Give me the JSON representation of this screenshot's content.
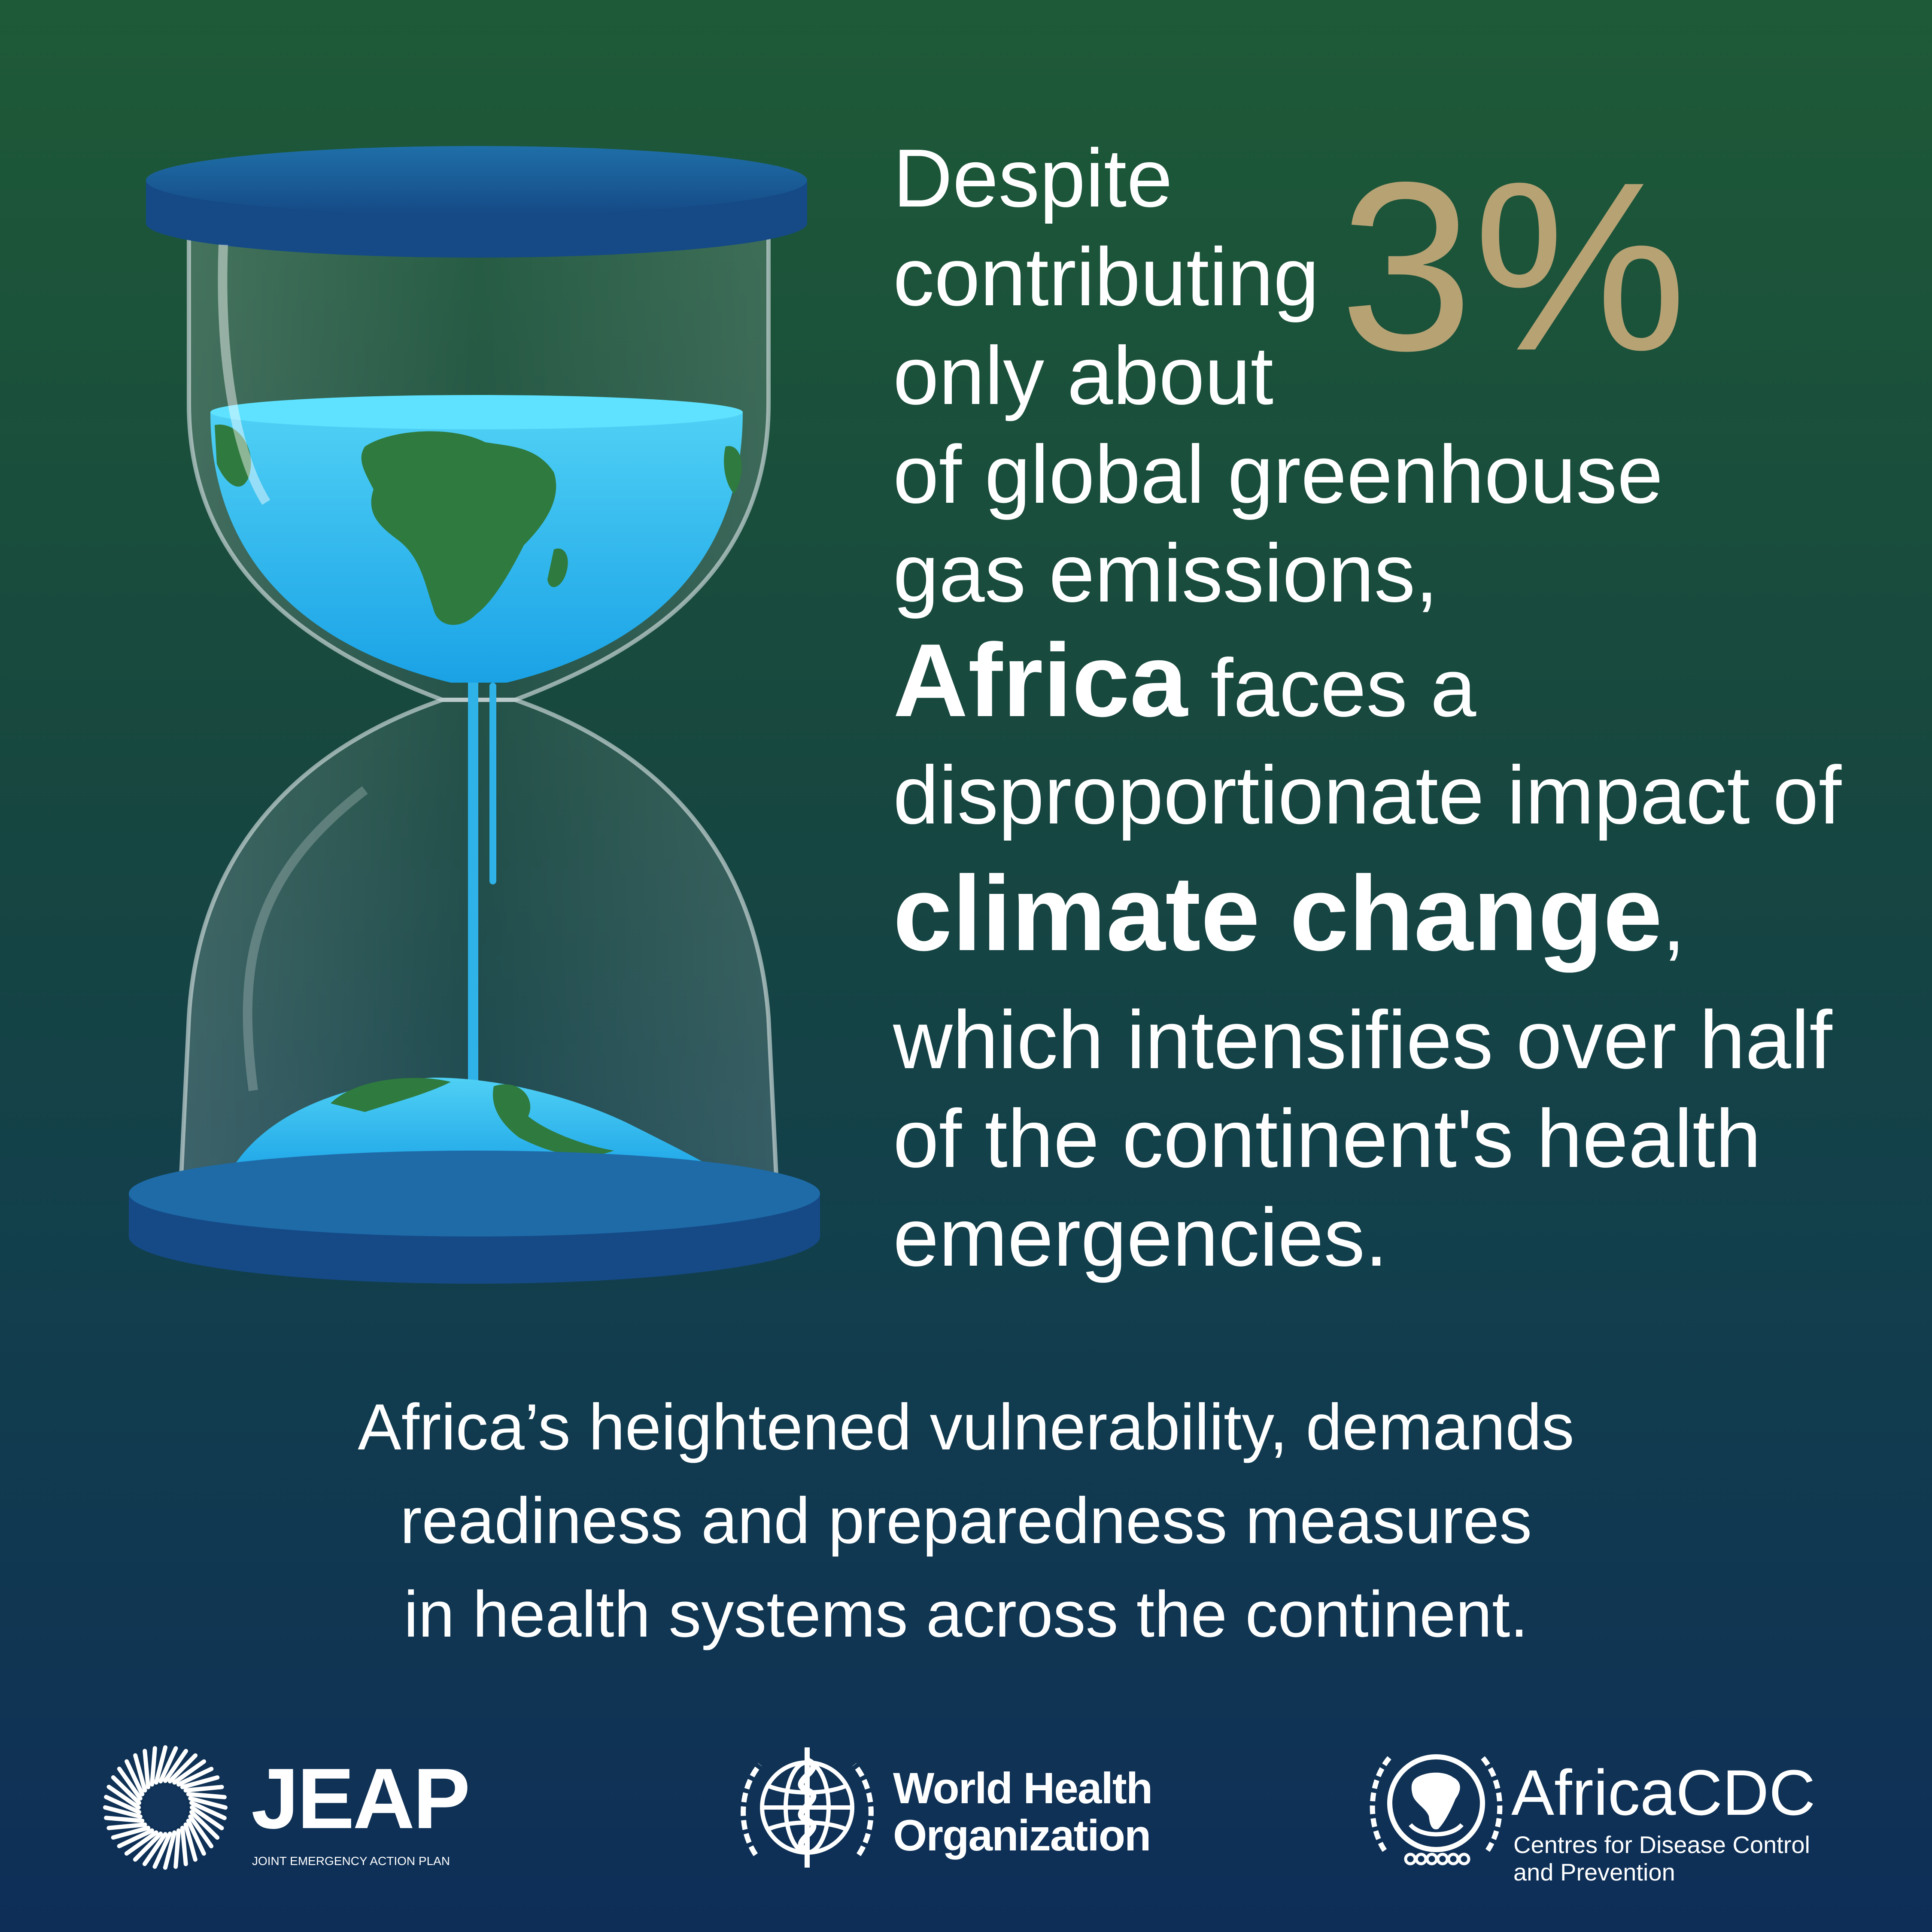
{
  "statement": {
    "line1": "Despite",
    "line2": "contributing",
    "line3": "only about",
    "percent": "3%",
    "line4": "of global greenhouse",
    "line5": "gas emissions,",
    "africa": "Africa",
    "faces": " faces a",
    "line7": "disproportionate impact of",
    "climate": "climate change",
    "comma": ",",
    "line9": "which intensifies over half",
    "line10": "of the continent's health",
    "line11": "emergencies."
  },
  "bottom": {
    "line1": "Africa’s heightened vulnerability, demands",
    "line2": "readiness and preparedness measures",
    "line3": "in health systems across the continent."
  },
  "logos": {
    "jeap_title": "JEAP",
    "jeap_sub": "JOINT EMERGENCY ACTION PLAN",
    "who_line1": "World Health",
    "who_line2": "Organization",
    "cdc_title": "AfricaCDC",
    "cdc_sub1": "Centres for Disease Control",
    "cdc_sub2": "and Prevention"
  },
  "colors": {
    "accent_gold": "#b7a274",
    "water_blue": "#2fb2e8",
    "land_green": "#2f7a3e",
    "base_blue": "#1b5c9e"
  }
}
